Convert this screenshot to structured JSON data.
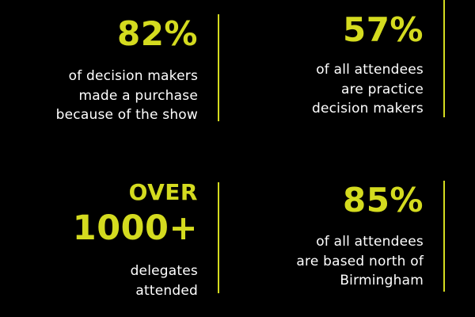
{
  "accent_color": "#d4db1f",
  "background_color": "#000000",
  "stats": [
    {
      "value": "82%",
      "description": [
        "of decision makers",
        "made a purchase",
        "because of the show"
      ]
    },
    {
      "value": "57%",
      "description": [
        "of all attendees",
        "are practice",
        "decision makers"
      ]
    },
    {
      "prefix": "OVER",
      "value": "1000+",
      "description": [
        "delegates",
        "attended"
      ]
    },
    {
      "value": "85%",
      "description": [
        "of all attendees",
        "are based north of",
        "Birmingham"
      ]
    }
  ]
}
